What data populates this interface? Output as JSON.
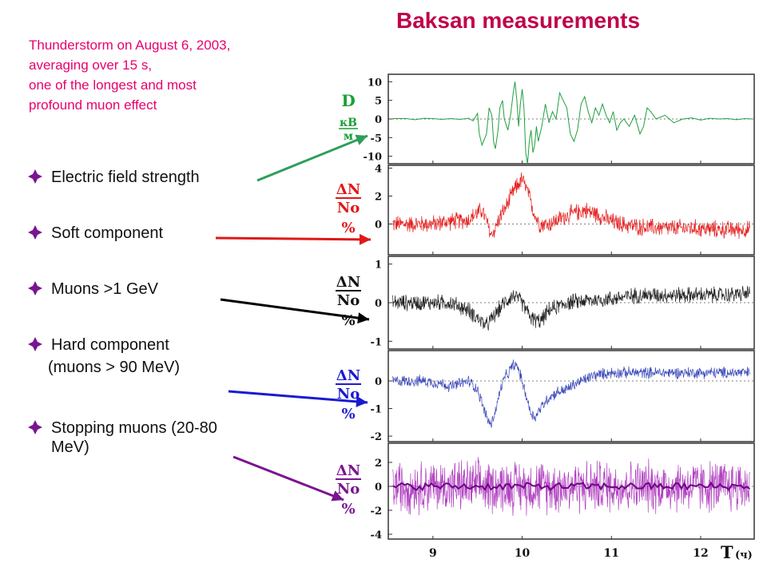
{
  "header": {
    "title": "Baksan measurements",
    "subtitle_lines": [
      "Thunderstorm on August 6,  2003,",
      "averaging over 15 s,",
      "one of the longest and most",
      "profound muon effect"
    ]
  },
  "bullets": [
    {
      "lines": [
        "Electric field strength"
      ],
      "color": "#2e9e5b"
    },
    {
      "lines": [
        "Soft component"
      ],
      "color": "#e01818"
    },
    {
      "lines": [
        "Muons >1 GeV"
      ],
      "color": "#000000"
    },
    {
      "lines": [
        "Hard component"
      ],
      "sub": "(muons > 90 MeV)",
      "color": "#1a1ad0"
    },
    {
      "lines": [
        "Stopping muons (20-80",
        "MeV)"
      ],
      "color": "#7a1490"
    }
  ],
  "colors": {
    "title": "#c0004a",
    "subtitle": "#e8006e",
    "bullet_mark": "#7a1490"
  },
  "chart_data": {
    "type": "line",
    "x_label": "T",
    "x_unit": "(ч)",
    "xlim": [
      8.5,
      12.6
    ],
    "x_ticks": [
      9,
      10,
      11,
      12
    ],
    "panels": [
      {
        "label": [
          "D",
          "кВ",
          "м"
        ],
        "label_color": "#18a035",
        "line_color": "#20a040",
        "ylim": [
          -12,
          12
        ],
        "y_ticks": [
          10,
          5,
          0,
          -5,
          -10
        ],
        "series": [
          [
            8.55,
            0.1
          ],
          [
            8.7,
            0.1
          ],
          [
            8.8,
            -0.2
          ],
          [
            8.9,
            0.2
          ],
          [
            9.0,
            0.1
          ],
          [
            9.1,
            -0.1
          ],
          [
            9.2,
            0.1
          ],
          [
            9.3,
            -0.1
          ],
          [
            9.4,
            0.2
          ],
          [
            9.45,
            -0.5
          ],
          [
            9.5,
            1.5
          ],
          [
            9.52,
            -4
          ],
          [
            9.55,
            -7
          ],
          [
            9.6,
            -4
          ],
          [
            9.63,
            3
          ],
          [
            9.66,
            1
          ],
          [
            9.68,
            -6
          ],
          [
            9.7,
            -8
          ],
          [
            9.73,
            -3
          ],
          [
            9.75,
            3
          ],
          [
            9.78,
            5
          ],
          [
            9.8,
            0
          ],
          [
            9.84,
            -3
          ],
          [
            9.87,
            1
          ],
          [
            9.9,
            7
          ],
          [
            9.92,
            10
          ],
          [
            9.94,
            5
          ],
          [
            9.96,
            -2
          ],
          [
            9.98,
            4
          ],
          [
            10.0,
            8
          ],
          [
            10.02,
            3
          ],
          [
            10.04,
            -9
          ],
          [
            10.06,
            -12
          ],
          [
            10.08,
            -6
          ],
          [
            10.1,
            -3
          ],
          [
            10.12,
            -9
          ],
          [
            10.14,
            -7
          ],
          [
            10.16,
            -2
          ],
          [
            10.18,
            -6
          ],
          [
            10.22,
            -2
          ],
          [
            10.26,
            4
          ],
          [
            10.3,
            -1
          ],
          [
            10.34,
            2
          ],
          [
            10.38,
            0
          ],
          [
            10.42,
            7
          ],
          [
            10.46,
            5
          ],
          [
            10.5,
            3
          ],
          [
            10.54,
            -4
          ],
          [
            10.58,
            -6
          ],
          [
            10.62,
            -3
          ],
          [
            10.66,
            4
          ],
          [
            10.7,
            6
          ],
          [
            10.74,
            2
          ],
          [
            10.78,
            -1
          ],
          [
            10.82,
            3
          ],
          [
            10.86,
            1
          ],
          [
            10.9,
            4
          ],
          [
            10.94,
            1
          ],
          [
            10.98,
            -1
          ],
          [
            11.02,
            2
          ],
          [
            11.06,
            -3
          ],
          [
            11.1,
            -1
          ],
          [
            11.14,
            0
          ],
          [
            11.2,
            -2
          ],
          [
            11.26,
            1
          ],
          [
            11.32,
            -4
          ],
          [
            11.36,
            -2
          ],
          [
            11.4,
            3
          ],
          [
            11.44,
            2
          ],
          [
            11.5,
            0
          ],
          [
            11.6,
            1
          ],
          [
            11.7,
            -1
          ],
          [
            11.8,
            0
          ],
          [
            11.9,
            0.3
          ],
          [
            12.0,
            -0.3
          ],
          [
            12.1,
            0.2
          ],
          [
            12.2,
            0
          ],
          [
            12.3,
            0.1
          ],
          [
            12.4,
            -0.2
          ],
          [
            12.5,
            0.1
          ],
          [
            12.58,
            0
          ]
        ]
      },
      {
        "label": [
          "ΔN",
          "No",
          "%"
        ],
        "label_color": "#e01818",
        "line_color": "#e52020",
        "ylim": [
          -2.2,
          4.2
        ],
        "y_ticks": [
          4,
          2,
          0
        ],
        "series": [
          [
            8.55,
            0
          ],
          [
            8.8,
            0
          ],
          [
            9.0,
            0
          ],
          [
            9.2,
            0.2
          ],
          [
            9.4,
            0.3
          ],
          [
            9.5,
            0.8
          ],
          [
            9.55,
            1
          ],
          [
            9.6,
            0.2
          ],
          [
            9.65,
            -0.8
          ],
          [
            9.7,
            -0.3
          ],
          [
            9.75,
            0.5
          ],
          [
            9.8,
            1
          ],
          [
            9.85,
            1.6
          ],
          [
            9.9,
            2.3
          ],
          [
            9.95,
            2.8
          ],
          [
            10.0,
            3.2
          ],
          [
            10.05,
            2.5
          ],
          [
            10.1,
            1.5
          ],
          [
            10.15,
            0.5
          ],
          [
            10.2,
            0
          ],
          [
            10.3,
            0
          ],
          [
            10.4,
            0.3
          ],
          [
            10.5,
            0.6
          ],
          [
            10.6,
            0.8
          ],
          [
            10.7,
            1
          ],
          [
            10.8,
            0.8
          ],
          [
            10.9,
            0.5
          ],
          [
            11.0,
            0.2
          ],
          [
            11.1,
            0
          ],
          [
            11.3,
            -0.2
          ],
          [
            11.6,
            -0.3
          ],
          [
            11.9,
            -0.3
          ],
          [
            12.2,
            -0.4
          ],
          [
            12.58,
            -0.4
          ]
        ],
        "noise": 0.75
      },
      {
        "label": [
          "ΔN",
          "No",
          "%"
        ],
        "label_color": "#111111",
        "line_color": "#222222",
        "ylim": [
          -1.2,
          1.2
        ],
        "y_ticks": [
          1,
          0,
          -1
        ],
        "series": [
          [
            8.55,
            0
          ],
          [
            9.0,
            0
          ],
          [
            9.2,
            0
          ],
          [
            9.4,
            -0.2
          ],
          [
            9.5,
            -0.4
          ],
          [
            9.6,
            -0.6
          ],
          [
            9.7,
            -0.3
          ],
          [
            9.8,
            0
          ],
          [
            9.9,
            0.2
          ],
          [
            10.0,
            0
          ],
          [
            10.1,
            -0.4
          ],
          [
            10.2,
            -0.5
          ],
          [
            10.3,
            -0.2
          ],
          [
            10.5,
            0
          ],
          [
            10.7,
            0.05
          ],
          [
            11.0,
            0.1
          ],
          [
            11.3,
            0.2
          ],
          [
            11.6,
            0.2
          ],
          [
            12.0,
            0.2
          ],
          [
            12.3,
            0.2
          ],
          [
            12.58,
            0.25
          ]
        ],
        "noise": 0.25
      },
      {
        "label": [
          "ΔN",
          "No",
          "%"
        ],
        "label_color": "#1a1ad0",
        "line_color": "#3a48b8",
        "ylim": [
          -2.2,
          1.1
        ],
        "y_ticks": [
          0,
          -1,
          -2
        ],
        "series": [
          [
            8.55,
            0
          ],
          [
            8.9,
            0
          ],
          [
            9.1,
            -0.1
          ],
          [
            9.2,
            -0.2
          ],
          [
            9.3,
            -0.1
          ],
          [
            9.4,
            0
          ],
          [
            9.5,
            -0.3
          ],
          [
            9.55,
            -0.8
          ],
          [
            9.6,
            -1.3
          ],
          [
            9.65,
            -1.6
          ],
          [
            9.7,
            -1.1
          ],
          [
            9.75,
            -0.4
          ],
          [
            9.8,
            0.1
          ],
          [
            9.85,
            0.3
          ],
          [
            9.9,
            0.6
          ],
          [
            9.95,
            0.5
          ],
          [
            10.0,
            0
          ],
          [
            10.05,
            -0.6
          ],
          [
            10.1,
            -1.2
          ],
          [
            10.15,
            -1.3
          ],
          [
            10.2,
            -1
          ],
          [
            10.25,
            -0.8
          ],
          [
            10.3,
            -0.6
          ],
          [
            10.4,
            -0.4
          ],
          [
            10.5,
            -0.3
          ],
          [
            10.6,
            -0.1
          ],
          [
            10.8,
            0.2
          ],
          [
            11.0,
            0.3
          ],
          [
            11.2,
            0.3
          ],
          [
            11.5,
            0.3
          ],
          [
            12.0,
            0.3
          ],
          [
            12.58,
            0.3
          ]
        ],
        "noise": 0.25
      },
      {
        "label": [
          "ΔN",
          "No",
          "%"
        ],
        "label_color": "#7a1490",
        "line_color": "#b040c0",
        "dark_line_color": "#700088",
        "ylim": [
          -4.4,
          3.6
        ],
        "y_ticks": [
          2,
          0,
          -2,
          -4
        ],
        "series": [
          [
            8.55,
            0
          ],
          [
            9.0,
            0
          ],
          [
            9.5,
            0
          ],
          [
            10.0,
            0
          ],
          [
            10.5,
            0
          ],
          [
            11.0,
            0
          ],
          [
            11.5,
            0
          ],
          [
            12.0,
            0
          ],
          [
            12.58,
            0
          ]
        ],
        "noise": 2.6
      }
    ]
  }
}
